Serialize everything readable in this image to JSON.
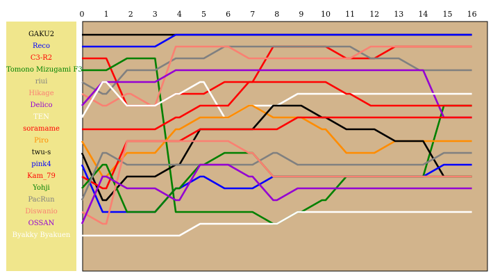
{
  "chart_data": {
    "type": "line",
    "x": [
      0,
      1,
      2,
      3,
      4,
      5,
      6,
      7,
      8,
      9,
      10,
      11,
      12,
      13,
      14,
      15,
      16
    ],
    "ylim": [
      1,
      18
    ],
    "y_inverted": true,
    "grid": false,
    "legend_placement": "left",
    "colors": {
      "plot_background": "#d2b48c",
      "legend_background": "#f0e68c"
    },
    "series": [
      {
        "name": "GAKU2",
        "color": "#000000",
        "values": [
          1,
          1,
          1,
          1,
          1,
          1,
          1,
          1,
          1,
          1,
          1,
          1,
          1,
          1,
          1,
          1,
          1
        ]
      },
      {
        "name": "Reco",
        "color": "#0000ff",
        "values": [
          2,
          2,
          2,
          2,
          1,
          1,
          1,
          1,
          1,
          1,
          1,
          1,
          1,
          1,
          1,
          1,
          1
        ]
      },
      {
        "name": "C3-R2",
        "color": "#ff0000",
        "values": [
          3,
          3,
          7,
          7,
          6,
          6,
          5,
          5,
          2,
          2,
          2,
          3,
          3,
          2,
          2,
          2,
          2
        ]
      },
      {
        "name": "Tomono Mizugami F3",
        "color": "#008000",
        "values": [
          4,
          4,
          3,
          3,
          16,
          16,
          16,
          16,
          17,
          16,
          15,
          13,
          13,
          13,
          13,
          7,
          7
        ]
      },
      {
        "name": "riui",
        "color": "#808080",
        "values": [
          5,
          6,
          4,
          4,
          3,
          3,
          2,
          2,
          2,
          2,
          2,
          2,
          3,
          3,
          4,
          4,
          4
        ]
      },
      {
        "name": "Hikage",
        "color": "#fa8072",
        "values": [
          6,
          7,
          6,
          7,
          2,
          2,
          2,
          3,
          3,
          3,
          3,
          3,
          2,
          2,
          2,
          2,
          2
        ]
      },
      {
        "name": "Delico",
        "color": "#9400d3",
        "values": [
          7,
          5,
          5,
          5,
          4,
          4,
          4,
          4,
          4,
          4,
          4,
          4,
          4,
          4,
          4,
          8,
          8
        ]
      },
      {
        "name": "TEN",
        "color": "#ffffff",
        "values": [
          8,
          5,
          7,
          7,
          6,
          5,
          8,
          7,
          7,
          6,
          6,
          6,
          6,
          6,
          6,
          6,
          6
        ]
      },
      {
        "name": "soramame",
        "color": "#ff0000",
        "values": [
          9,
          9,
          9,
          9,
          8,
          7,
          7,
          5,
          5,
          5,
          5,
          6,
          7,
          7,
          7,
          7,
          7
        ]
      },
      {
        "name": "Piro",
        "color": "#ff8c00",
        "values": [
          10,
          13,
          11,
          11,
          9,
          8,
          8,
          7,
          8,
          8,
          9,
          11,
          11,
          10,
          10,
          10,
          10
        ]
      },
      {
        "name": "twu-s",
        "color": "#000000",
        "values": [
          11,
          15,
          13,
          13,
          12,
          9,
          9,
          9,
          7,
          7,
          8,
          9,
          9,
          10,
          10,
          13,
          13
        ]
      },
      {
        "name": "pink4",
        "color": "#0000ff",
        "values": [
          12,
          16,
          16,
          16,
          14,
          13,
          14,
          14,
          13,
          13,
          13,
          13,
          13,
          13,
          13,
          12,
          12
        ]
      },
      {
        "name": "Kam_79",
        "color": "#ff0000",
        "values": [
          13,
          14,
          10,
          10,
          10,
          9,
          9,
          9,
          9,
          8,
          8,
          8,
          8,
          8,
          8,
          8,
          8
        ]
      },
      {
        "name": "Yohji",
        "color": "#008000",
        "values": [
          14,
          12,
          16,
          16,
          14,
          12,
          11,
          11,
          13,
          13,
          13,
          13,
          13,
          13,
          13,
          13,
          13
        ]
      },
      {
        "name": "PacRun",
        "color": "#808080",
        "values": [
          15,
          11,
          12,
          12,
          12,
          12,
          12,
          12,
          11,
          12,
          12,
          12,
          12,
          12,
          12,
          11,
          11
        ]
      },
      {
        "name": "Diswanio",
        "color": "#fa8072",
        "values": [
          16,
          17,
          10,
          10,
          10,
          10,
          10,
          11,
          13,
          13,
          13,
          13,
          13,
          13,
          13,
          13,
          13
        ]
      },
      {
        "name": "OSSAN",
        "color": "#9400d3",
        "values": [
          17,
          13,
          14,
          14,
          15,
          12,
          12,
          13,
          15,
          14,
          14,
          14,
          14,
          14,
          14,
          14,
          14
        ]
      },
      {
        "name": "Byakky Byakuen",
        "color": "#ffffff",
        "values": [
          18,
          18,
          18,
          18,
          18,
          17,
          17,
          17,
          17,
          16,
          16,
          16,
          16,
          16,
          16,
          16,
          16
        ]
      }
    ]
  }
}
